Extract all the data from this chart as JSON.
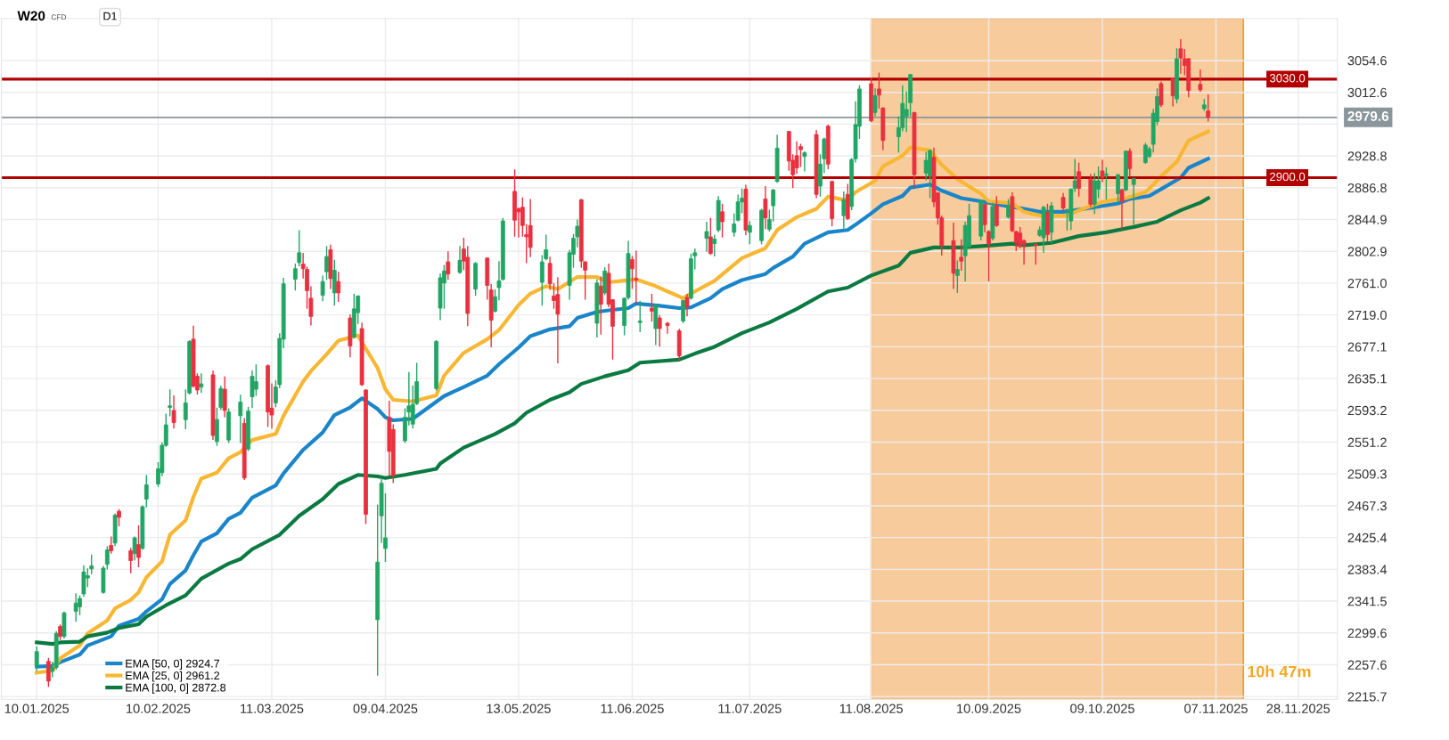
{
  "chart_data": {
    "type": "candlestick",
    "title": "W20",
    "subtitle": "CFD",
    "annotations": [
      "D1",
      "10h 47m"
    ],
    "x": [
      "2025-01-10",
      "2025-01-13",
      "2025-01-14",
      "2025-01-15",
      "2025-01-16",
      "2025-01-17",
      "2025-01-20",
      "2025-01-21",
      "2025-01-22",
      "2025-01-23",
      "2025-01-24",
      "2025-01-27",
      "2025-01-28",
      "2025-01-29",
      "2025-01-30",
      "2025-01-31",
      "2025-02-03",
      "2025-02-04",
      "2025-02-05",
      "2025-02-06",
      "2025-02-07",
      "2025-02-10",
      "2025-02-11",
      "2025-02-12",
      "2025-02-13",
      "2025-02-14",
      "2025-02-17",
      "2025-02-18",
      "2025-02-19",
      "2025-02-20",
      "2025-02-21",
      "2025-02-24",
      "2025-02-25",
      "2025-02-26",
      "2025-02-27",
      "2025-02-28",
      "2025-03-03",
      "2025-03-04",
      "2025-03-05",
      "2025-03-06",
      "2025-03-07",
      "2025-03-10",
      "2025-03-11",
      "2025-03-12",
      "2025-03-13",
      "2025-03-14",
      "2025-03-17",
      "2025-03-18",
      "2025-03-19",
      "2025-03-20",
      "2025-03-21",
      "2025-03-24",
      "2025-03-25",
      "2025-03-26",
      "2025-03-27",
      "2025-03-28",
      "2025-03-31",
      "2025-04-01",
      "2025-04-02",
      "2025-04-03",
      "2025-04-04",
      "2025-04-07",
      "2025-04-08",
      "2025-04-09",
      "2025-04-10",
      "2025-04-11",
      "2025-04-14",
      "2025-04-15",
      "2025-04-16",
      "2025-04-17",
      "2025-04-22",
      "2025-04-23",
      "2025-04-24",
      "2025-04-25",
      "2025-04-28",
      "2025-04-29",
      "2025-04-30",
      "2025-05-02",
      "2025-05-05",
      "2025-05-06",
      "2025-05-07",
      "2025-05-08",
      "2025-05-09",
      "2025-05-12",
      "2025-05-13",
      "2025-05-14",
      "2025-05-15",
      "2025-05-16",
      "2025-05-19",
      "2025-05-20",
      "2025-05-21",
      "2025-05-22",
      "2025-05-23",
      "2025-05-26",
      "2025-05-27",
      "2025-05-28",
      "2025-05-29",
      "2025-05-30",
      "2025-06-02",
      "2025-06-03",
      "2025-06-04",
      "2025-06-05",
      "2025-06-06",
      "2025-06-09",
      "2025-06-10",
      "2025-06-11",
      "2025-06-12",
      "2025-06-13",
      "2025-06-16",
      "2025-06-17",
      "2025-06-18",
      "2025-06-20",
      "2025-06-23",
      "2025-06-24",
      "2025-06-25",
      "2025-06-26",
      "2025-06-27",
      "2025-06-30",
      "2025-07-01",
      "2025-07-02",
      "2025-07-03",
      "2025-07-04",
      "2025-07-07",
      "2025-07-08",
      "2025-07-09",
      "2025-07-10",
      "2025-07-11",
      "2025-07-14",
      "2025-07-15",
      "2025-07-16",
      "2025-07-17",
      "2025-07-18",
      "2025-07-21",
      "2025-07-22",
      "2025-07-23",
      "2025-07-24",
      "2025-07-25",
      "2025-07-28",
      "2025-07-29",
      "2025-07-30",
      "2025-07-31",
      "2025-08-01",
      "2025-08-04",
      "2025-08-05",
      "2025-08-06",
      "2025-08-07",
      "2025-08-08",
      "2025-08-11",
      "2025-08-12",
      "2025-08-13",
      "2025-08-14",
      "2025-08-18",
      "2025-08-19",
      "2025-08-20",
      "2025-08-21",
      "2025-08-22",
      "2025-08-25",
      "2025-08-26",
      "2025-08-27",
      "2025-08-28",
      "2025-08-29",
      "2025-09-01",
      "2025-09-02",
      "2025-09-03",
      "2025-09-04",
      "2025-09-05",
      "2025-09-08",
      "2025-09-09",
      "2025-09-10",
      "2025-09-11",
      "2025-09-12",
      "2025-09-15",
      "2025-09-16",
      "2025-09-17",
      "2025-09-18",
      "2025-09-19",
      "2025-09-22",
      "2025-09-23",
      "2025-09-24",
      "2025-09-25",
      "2025-09-26",
      "2025-09-29",
      "2025-09-30",
      "2025-10-01",
      "2025-10-02",
      "2025-10-03",
      "2025-10-06",
      "2025-10-07",
      "2025-10-08",
      "2025-10-09",
      "2025-10-10",
      "2025-10-13",
      "2025-10-14",
      "2025-10-15",
      "2025-10-16",
      "2025-10-17",
      "2025-10-20",
      "2025-10-21",
      "2025-10-22",
      "2025-10-23",
      "2025-10-24",
      "2025-10-27",
      "2025-10-28",
      "2025-10-29",
      "2025-10-30",
      "2025-10-31",
      "2025-11-03",
      "2025-11-04",
      "2025-11-05"
    ],
    "ohlc": [
      [
        2256,
        2281,
        2250,
        2275
      ],
      [
        2262,
        2266,
        2229,
        2236
      ],
      [
        2249,
        2261,
        2242,
        2254
      ],
      [
        2254,
        2301,
        2252,
        2299
      ],
      [
        2308,
        2310,
        2291,
        2295
      ],
      [
        2295,
        2327,
        2293,
        2326
      ],
      [
        2328,
        2351,
        2315,
        2339
      ],
      [
        2334,
        2348,
        2324,
        2345
      ],
      [
        2351,
        2388,
        2348,
        2380
      ],
      [
        2372,
        2384,
        2361,
        2375
      ],
      [
        2384,
        2402,
        2378,
        2388
      ],
      [
        2353,
        2387,
        2352,
        2385
      ],
      [
        2390,
        2413,
        2384,
        2409
      ],
      [
        2415,
        2426,
        2405,
        2408
      ],
      [
        2418,
        2456,
        2415,
        2455
      ],
      [
        2460,
        2462,
        2441,
        2452
      ],
      [
        2408,
        2411,
        2379,
        2395
      ],
      [
        2404,
        2426,
        2396,
        2425
      ],
      [
        2416,
        2441,
        2387,
        2399
      ],
      [
        2411,
        2467,
        2410,
        2466
      ],
      [
        2476,
        2507,
        2466,
        2495
      ],
      [
        2496,
        2524,
        2493,
        2516
      ],
      [
        2511,
        2550,
        2507,
        2547
      ],
      [
        2547,
        2588,
        2546,
        2574
      ],
      [
        2597,
        2620,
        2586,
        2599
      ],
      [
        2593,
        2612,
        2570,
        2577
      ],
      [
        2581,
        2620,
        2569,
        2603
      ],
      [
        2616,
        2685,
        2615,
        2684
      ],
      [
        2687,
        2704,
        2624,
        2625
      ],
      [
        2638,
        2641,
        2615,
        2620
      ],
      [
        2624,
        2641,
        2617,
        2628
      ],
      [
        2640,
        2645,
        2555,
        2560
      ],
      [
        2552,
        2596,
        2547,
        2581
      ],
      [
        2597,
        2625,
        2595,
        2622
      ],
      [
        2621,
        2637,
        2585,
        2593
      ],
      [
        2554,
        2595,
        2551,
        2591
      ],
      [
        2586,
        2613,
        2551,
        2604
      ],
      [
        2576,
        2582,
        2502,
        2504
      ],
      [
        2542,
        2597,
        2540,
        2592
      ],
      [
        2611,
        2645,
        2597,
        2638
      ],
      [
        2621,
        2653,
        2613,
        2631
      ],
      [
        2652,
        2653,
        2572,
        2591
      ],
      [
        2596,
        2628,
        2570,
        2587
      ],
      [
        2603,
        2632,
        2598,
        2624
      ],
      [
        2627,
        2694,
        2623,
        2688
      ],
      [
        2687,
        2767,
        2676,
        2760
      ],
      [
        2766,
        2786,
        2752,
        2780
      ],
      [
        2788,
        2830,
        2784,
        2801
      ],
      [
        2786,
        2800,
        2768,
        2780
      ],
      [
        2779,
        2782,
        2728,
        2751
      ],
      [
        2741,
        2756,
        2706,
        2717
      ],
      [
        2745,
        2770,
        2738,
        2763
      ],
      [
        2776,
        2809,
        2766,
        2796
      ],
      [
        2805,
        2811,
        2754,
        2767
      ],
      [
        2748,
        2791,
        2732,
        2778
      ],
      [
        2763,
        2775,
        2737,
        2748
      ],
      [
        2715,
        2719,
        2664,
        2678
      ],
      [
        2690,
        2746,
        2689,
        2727
      ],
      [
        2722,
        2744,
        2708,
        2744
      ],
      [
        2701,
        2708,
        2626,
        2627
      ],
      [
        2620,
        2620,
        2444,
        2456
      ],
      [
        2317,
        2468,
        2244,
        2393
      ],
      [
        2454,
        2504,
        2419,
        2497
      ],
      [
        2411,
        2483,
        2394,
        2425
      ],
      [
        2584,
        2605,
        2508,
        2539
      ],
      [
        2568,
        2574,
        2498,
        2507
      ],
      [
        2553,
        2595,
        2551,
        2584
      ],
      [
        2591,
        2643,
        2574,
        2599
      ],
      [
        2575,
        2625,
        2570,
        2601
      ],
      [
        2602,
        2655,
        2601,
        2631
      ],
      [
        2622,
        2685,
        2620,
        2684
      ],
      [
        2728,
        2773,
        2713,
        2768
      ],
      [
        2761,
        2784,
        2728,
        2777
      ],
      [
        2789,
        2802,
        2766,
        2773
      ],
      [
        2775,
        2809,
        2774,
        2791
      ],
      [
        2806,
        2820,
        2779,
        2790
      ],
      [
        2795,
        2809,
        2705,
        2721
      ],
      [
        2753,
        2788,
        2745,
        2787
      ],
      [
        2794,
        2794,
        2740,
        2758
      ],
      [
        2752,
        2759,
        2677,
        2712
      ],
      [
        2724,
        2752,
        2723,
        2743
      ],
      [
        2755,
        2789,
        2739,
        2764
      ],
      [
        2766,
        2846,
        2765,
        2843
      ],
      [
        2882,
        2910,
        2823,
        2844
      ],
      [
        2859,
        2860,
        2822,
        2855
      ],
      [
        2861,
        2873,
        2823,
        2837
      ],
      [
        2825,
        2838,
        2788,
        2822
      ],
      [
        2837,
        2871,
        2796,
        2808
      ],
      [
        2762,
        2797,
        2732,
        2789
      ],
      [
        2793,
        2824,
        2792,
        2805
      ],
      [
        2787,
        2795,
        2753,
        2760
      ],
      [
        2744,
        2760,
        2728,
        2738
      ],
      [
        2746,
        2768,
        2656,
        2720
      ],
      [
        2758,
        2804,
        2740,
        2801
      ],
      [
        2799,
        2825,
        2782,
        2820
      ],
      [
        2822,
        2844,
        2809,
        2836
      ],
      [
        2871,
        2871,
        2782,
        2790
      ],
      [
        2789,
        2789,
        2740,
        2778
      ],
      [
        2708,
        2765,
        2690,
        2761
      ],
      [
        2757,
        2769,
        2694,
        2733
      ],
      [
        2748,
        2781,
        2746,
        2777
      ],
      [
        2774,
        2786,
        2730,
        2733
      ],
      [
        2739,
        2739,
        2661,
        2704
      ],
      [
        2705,
        2741,
        2693,
        2741
      ],
      [
        2742,
        2816,
        2740,
        2800
      ],
      [
        2792,
        2796,
        2754,
        2780
      ],
      [
        2767,
        2803,
        2735,
        2765
      ],
      [
        2709,
        2737,
        2697,
        2711
      ],
      [
        2728,
        2746,
        2711,
        2724
      ],
      [
        2701,
        2732,
        2680,
        2732
      ],
      [
        2715,
        2718,
        2678,
        2701
      ],
      [
        2708,
        2709,
        2695,
        2705
      ],
      [
        2698,
        2700,
        2659,
        2665
      ],
      [
        2711,
        2738,
        2709,
        2738
      ],
      [
        2742,
        2746,
        2718,
        2730
      ],
      [
        2741,
        2799,
        2740,
        2793
      ],
      [
        2797,
        2806,
        2780,
        2801
      ],
      [
        2820,
        2841,
        2803,
        2829
      ],
      [
        2822,
        2846,
        2799,
        2800
      ],
      [
        2813,
        2824,
        2797,
        2819
      ],
      [
        2831,
        2875,
        2829,
        2870
      ],
      [
        2855,
        2865,
        2822,
        2842
      ],
      [
        2828,
        2852,
        2823,
        2839
      ],
      [
        2844,
        2877,
        2843,
        2868
      ],
      [
        2868,
        2885,
        2854,
        2873
      ],
      [
        2885,
        2890,
        2825,
        2831
      ],
      [
        2828,
        2842,
        2813,
        2837
      ],
      [
        2817,
        2858,
        2813,
        2857
      ],
      [
        2872,
        2888,
        2833,
        2847
      ],
      [
        2832,
        2857,
        2830,
        2845
      ],
      [
        2863,
        2884,
        2843,
        2884
      ],
      [
        2895,
        2956,
        2894,
        2939
      ],
      [
        2961,
        2961,
        2910,
        2922
      ],
      [
        2923,
        2930,
        2887,
        2904
      ],
      [
        2929,
        2947,
        2906,
        2913
      ],
      [
        2941,
        2944,
        2915,
        2937
      ],
      [
        2928,
        2934,
        2909,
        2933
      ],
      [
        2957,
        2962,
        2874,
        2878
      ],
      [
        2889,
        2930,
        2876,
        2918
      ],
      [
        2925,
        2952,
        2907,
        2951
      ],
      [
        2968,
        2969,
        2912,
        2918
      ],
      [
        2895,
        2895,
        2837,
        2846
      ],
      [
        2850,
        2881,
        2834,
        2871
      ],
      [
        2878,
        2891,
        2845,
        2846
      ],
      [
        2862,
        2925,
        2858,
        2924
      ],
      [
        2925,
        3000,
        2921,
        2970
      ],
      [
        2968,
        3021,
        2952,
        3017
      ],
      [
        3024,
        3031,
        2974,
        2975
      ],
      [
        2986,
        3017,
        2982,
        3008
      ],
      [
        3017,
        3038,
        2992,
        3009
      ],
      [
        2992,
        2992,
        2937,
        2949
      ],
      [
        2954,
        2980,
        2934,
        2966
      ],
      [
        2966,
        3021,
        2962,
        2998
      ],
      [
        2981,
        3013,
        2961,
        2990
      ],
      [
        2999,
        3036,
        2982,
        3036
      ],
      [
        2986,
        2986,
        2888,
        2904
      ],
      [
        2906,
        2933,
        2897,
        2923
      ],
      [
        2902,
        2936,
        2874,
        2936
      ],
      [
        2927,
        2939,
        2862,
        2868
      ],
      [
        2880,
        2880,
        2839,
        2847
      ],
      [
        2847,
        2849,
        2798,
        2810
      ],
      [
        2817,
        2840,
        2754,
        2774
      ],
      [
        2771,
        2790,
        2749,
        2779
      ],
      [
        2795,
        2818,
        2778,
        2790
      ],
      [
        2797,
        2841,
        2764,
        2837
      ],
      [
        2809,
        2865,
        2809,
        2850
      ],
      [
        2823,
        2870,
        2818,
        2870
      ],
      [
        2865,
        2865,
        2829,
        2838
      ],
      [
        2829,
        2830,
        2764,
        2813
      ],
      [
        2820,
        2866,
        2818,
        2862
      ],
      [
        2863,
        2875,
        2836,
        2837
      ],
      [
        2848,
        2871,
        2847,
        2863
      ],
      [
        2875,
        2880,
        2829,
        2830
      ],
      [
        2829,
        2829,
        2804,
        2814
      ],
      [
        2827,
        2834,
        2808,
        2809
      ],
      [
        2817,
        2818,
        2786,
        2812
      ],
      [
        2812,
        2813,
        2786,
        2811
      ],
      [
        2824,
        2835,
        2823,
        2831
      ],
      [
        2821,
        2862,
        2802,
        2861
      ],
      [
        2854,
        2865,
        2817,
        2825
      ],
      [
        2828,
        2867,
        2814,
        2863
      ],
      [
        2874,
        2879,
        2856,
        2860
      ],
      [
        2857,
        2858,
        2831,
        2858
      ],
      [
        2843,
        2885,
        2832,
        2885
      ],
      [
        2886,
        2924,
        2882,
        2896
      ],
      [
        2908,
        2919,
        2876,
        2886
      ],
      [
        2898,
        2904,
        2862,
        2865
      ],
      [
        2865,
        2905,
        2853,
        2896
      ],
      [
        2885,
        2914,
        2874,
        2896
      ],
      [
        2909,
        2923,
        2895,
        2900
      ],
      [
        2903,
        2913,
        2872,
        2905
      ],
      [
        2879,
        2904,
        2868,
        2904
      ],
      [
        2884,
        2885,
        2833,
        2869
      ],
      [
        2884,
        2935,
        2883,
        2935
      ],
      [
        2935,
        2938,
        2902,
        2912
      ],
      [
        2891,
        2899,
        2839,
        2899
      ],
      [
        2920,
        2945,
        2919,
        2943
      ],
      [
        2928,
        2940,
        2927,
        2938
      ],
      [
        2944,
        2990,
        2934,
        2985
      ],
      [
        2974,
        3017,
        2970,
        3007
      ],
      [
        3024,
        3026,
        2994,
        2996
      ],
      [
        3031,
        3031,
        2995,
        3008
      ],
      [
        3004,
        3070,
        2999,
        3057
      ],
      [
        3070,
        3082,
        3038,
        3058
      ],
      [
        3057,
        3069,
        3036,
        3048
      ],
      [
        3057,
        3057,
        3007,
        3015
      ],
      [
        3023,
        3042,
        3014,
        3016
      ],
      [
        2991,
        3003,
        2989,
        2996
      ],
      [
        2988,
        3009,
        2975,
        2979.6
      ]
    ],
    "series": [
      {
        "type": "line",
        "name": "EMA [50, 0] 2924.7",
        "color": "#1a85c8",
        "x": [
          "2025-01-10",
          "2025-01-14",
          "2025-01-16",
          "2025-01-21",
          "2025-01-23",
          "2025-01-29",
          "2025-01-31",
          "2025-02-05",
          "2025-02-07",
          "2025-02-11",
          "2025-02-13",
          "2025-02-17",
          "2025-02-19",
          "2025-02-21",
          "2025-02-25",
          "2025-02-28",
          "2025-03-03",
          "2025-03-06",
          "2025-03-12",
          "2025-03-14",
          "2025-03-19",
          "2025-03-24",
          "2025-03-27",
          "2025-03-31",
          "2025-04-03",
          "2025-04-07",
          "2025-04-09",
          "2025-04-11",
          "2025-04-16",
          "2025-04-24",
          "2025-04-29",
          "2025-05-05",
          "2025-05-08",
          "2025-05-13",
          "2025-05-16",
          "2025-05-21",
          "2025-05-26",
          "2025-05-28",
          "2025-06-02",
          "2025-06-05",
          "2025-06-10",
          "2025-06-12",
          "2025-06-18",
          "2025-06-23",
          "2025-06-26",
          "2025-07-01",
          "2025-07-04",
          "2025-07-09",
          "2025-07-15",
          "2025-07-17",
          "2025-07-22",
          "2025-07-25",
          "2025-07-31",
          "2025-08-05",
          "2025-08-07",
          "2025-08-11",
          "2025-08-14",
          "2025-08-19",
          "2025-08-21",
          "2025-08-26",
          "2025-08-29",
          "2025-09-03",
          "2025-09-08",
          "2025-09-12",
          "2025-09-19",
          "2025-09-23",
          "2025-09-29",
          "2025-10-02",
          "2025-10-07",
          "2025-10-13",
          "2025-10-16",
          "2025-10-21",
          "2025-10-24",
          "2025-10-29",
          "2025-10-31",
          "2025-11-05"
        ],
        "values": [
          2255,
          2256,
          2261,
          2271,
          2283,
          2295,
          2309,
          2318,
          2328,
          2344,
          2364,
          2382,
          2402,
          2420,
          2431,
          2450,
          2458,
          2478,
          2494,
          2510,
          2541,
          2564,
          2587,
          2597,
          2609,
          2595,
          2584,
          2580,
          2582,
          2612,
          2624,
          2639,
          2654,
          2676,
          2691,
          2700,
          2704,
          2715,
          2723,
          2725,
          2728,
          2734,
          2731,
          2728,
          2729,
          2741,
          2753,
          2765,
          2773,
          2781,
          2796,
          2813,
          2828,
          2831,
          2838,
          2853,
          2865,
          2876,
          2887,
          2891,
          2883,
          2873,
          2869,
          2865,
          2859,
          2855,
          2855,
          2857,
          2861,
          2866,
          2872,
          2876,
          2885,
          2900,
          2913,
          2925
        ]
      },
      {
        "type": "line",
        "name": "EMA [25, 0] 2961.2",
        "color": "#f7b733",
        "x": [
          "2025-01-10",
          "2025-01-14",
          "2025-01-16",
          "2025-01-21",
          "2025-01-23",
          "2025-01-28",
          "2025-01-30",
          "2025-02-03",
          "2025-02-05",
          "2025-02-07",
          "2025-02-11",
          "2025-02-13",
          "2025-02-17",
          "2025-02-19",
          "2025-02-21",
          "2025-02-25",
          "2025-02-28",
          "2025-03-03",
          "2025-03-06",
          "2025-03-12",
          "2025-03-14",
          "2025-03-19",
          "2025-03-21",
          "2025-03-25",
          "2025-03-28",
          "2025-04-02",
          "2025-04-03",
          "2025-04-07",
          "2025-04-09",
          "2025-04-11",
          "2025-04-16",
          "2025-04-22",
          "2025-04-24",
          "2025-04-29",
          "2025-05-05",
          "2025-05-08",
          "2025-05-13",
          "2025-05-16",
          "2025-05-20",
          "2025-05-23",
          "2025-05-28",
          "2025-06-02",
          "2025-06-05",
          "2025-06-12",
          "2025-06-17",
          "2025-06-20",
          "2025-06-24",
          "2025-06-27",
          "2025-07-02",
          "2025-07-09",
          "2025-07-15",
          "2025-07-18",
          "2025-07-23",
          "2025-07-28",
          "2025-07-31",
          "2025-08-05",
          "2025-08-07",
          "2025-08-12",
          "2025-08-14",
          "2025-08-19",
          "2025-08-21",
          "2025-08-26",
          "2025-08-29",
          "2025-09-02",
          "2025-09-08",
          "2025-09-10",
          "2025-09-16",
          "2025-09-19",
          "2025-09-24",
          "2025-09-30",
          "2025-10-03",
          "2025-10-09",
          "2025-10-15",
          "2025-10-20",
          "2025-10-22",
          "2025-10-24",
          "2025-10-28",
          "2025-10-31",
          "2025-11-05"
        ],
        "values": [
          2247,
          2250,
          2266,
          2283,
          2299,
          2316,
          2332,
          2343,
          2353,
          2373,
          2394,
          2429,
          2448,
          2479,
          2503,
          2511,
          2530,
          2538,
          2554,
          2562,
          2586,
          2631,
          2645,
          2667,
          2685,
          2692,
          2683,
          2649,
          2621,
          2607,
          2605,
          2613,
          2639,
          2669,
          2687,
          2699,
          2732,
          2747,
          2757,
          2753,
          2769,
          2769,
          2762,
          2766,
          2757,
          2750,
          2741,
          2750,
          2764,
          2794,
          2807,
          2831,
          2848,
          2859,
          2875,
          2870,
          2881,
          2896,
          2915,
          2929,
          2940,
          2936,
          2917,
          2898,
          2879,
          2869,
          2866,
          2855,
          2849,
          2850,
          2857,
          2868,
          2873,
          2881,
          2891,
          2902,
          2921,
          2949,
          2961
        ]
      },
      {
        "type": "line",
        "name": "EMA [100, 0] 2872.8",
        "color": "#0b7a42",
        "x": [
          "2025-01-10",
          "2025-01-14",
          "2025-01-16",
          "2025-01-21",
          "2025-01-23",
          "2025-01-28",
          "2025-01-31",
          "2025-02-05",
          "2025-02-07",
          "2025-02-12",
          "2025-02-17",
          "2025-02-21",
          "2025-02-28",
          "2025-03-03",
          "2025-03-06",
          "2025-03-13",
          "2025-03-18",
          "2025-03-24",
          "2025-03-28",
          "2025-04-02",
          "2025-04-07",
          "2025-04-09",
          "2025-04-14",
          "2025-04-22",
          "2025-04-23",
          "2025-04-29",
          "2025-05-07",
          "2025-05-12",
          "2025-05-15",
          "2025-05-21",
          "2025-05-26",
          "2025-05-29",
          "2025-06-04",
          "2025-06-10",
          "2025-06-13",
          "2025-06-23",
          "2025-06-27",
          "2025-07-02",
          "2025-07-09",
          "2025-07-16",
          "2025-07-23",
          "2025-07-31",
          "2025-08-05",
          "2025-08-11",
          "2025-08-18",
          "2025-08-21",
          "2025-08-27",
          "2025-09-03",
          "2025-09-09",
          "2025-09-16",
          "2025-09-19",
          "2025-09-26",
          "2025-10-03",
          "2025-10-10",
          "2025-10-17",
          "2025-10-23",
          "2025-10-29",
          "2025-11-03",
          "2025-11-05"
        ],
        "values": [
          2287,
          2285,
          2287,
          2288,
          2295,
          2300,
          2306,
          2311,
          2321,
          2336,
          2349,
          2371,
          2391,
          2397,
          2410,
          2429,
          2454,
          2476,
          2496,
          2508,
          2506,
          2504,
          2508,
          2516,
          2523,
          2544,
          2562,
          2576,
          2590,
          2607,
          2617,
          2628,
          2638,
          2646,
          2656,
          2660,
          2668,
          2677,
          2695,
          2709,
          2727,
          2750,
          2755,
          2771,
          2784,
          2801,
          2808,
          2808,
          2810,
          2813,
          2811,
          2814,
          2823,
          2828,
          2835,
          2842,
          2857,
          2867,
          2873
        ]
      }
    ],
    "ylim": [
      2212,
      3110
    ],
    "yticks": [
      2215.7,
      2257.6,
      2299.6,
      2341.5,
      2383.4,
      2425.4,
      2467.3,
      2509.3,
      2551.2,
      2593.2,
      2635.1,
      2677.1,
      {
        "value": 2719.0,
        "label": "2719.0"
      },
      {
        "value": 2761.0,
        "label": "2761.0"
      },
      2802.9,
      2844.9,
      2886.8,
      2928.8,
      {
        "value": 2970.7,
        "label": null
      },
      3012.6,
      3054.6
    ],
    "xlim": [
      "2025-01-01",
      "2025-12-08"
    ],
    "xticks": [
      {
        "value": "2025-01-10",
        "label": "10.01.2025"
      },
      {
        "value": "2025-02-10",
        "label": "10.02.2025"
      },
      {
        "value": "2025-03-11",
        "label": "11.03.2025"
      },
      {
        "value": "2025-04-09",
        "label": "09.04.2025"
      },
      {
        "value": "2025-05-13",
        "label": "13.05.2025"
      },
      {
        "value": "2025-06-11",
        "label": "11.06.2025"
      },
      {
        "value": "2025-07-11",
        "label": "11.07.2025"
      },
      {
        "value": "2025-08-11",
        "label": "11.08.2025"
      },
      {
        "value": "2025-09-10",
        "label": "10.09.2025"
      },
      {
        "value": "2025-10-09",
        "label": "09.10.2025"
      },
      {
        "value": "2025-11-07",
        "label": "07.11.2025"
      },
      {
        "value": "2025-11-28",
        "label": "28.11.2025"
      }
    ],
    "ref_lines": [
      {
        "axis": "y",
        "value": 3030.0,
        "label": "3030.0",
        "color": "#b20000"
      },
      {
        "axis": "y",
        "value": 2900.0,
        "label": "2900.0",
        "color": "#b20000"
      },
      {
        "axis": "y",
        "value": 2979.6,
        "label": "2979.6",
        "color": "#8a969c"
      }
    ],
    "bands": [
      {
        "axis": "x",
        "from": "2025-08-11",
        "to": "2025-11-14",
        "color": "#f8cb9c"
      }
    ],
    "grid": true,
    "legend": "bottom left"
  }
}
